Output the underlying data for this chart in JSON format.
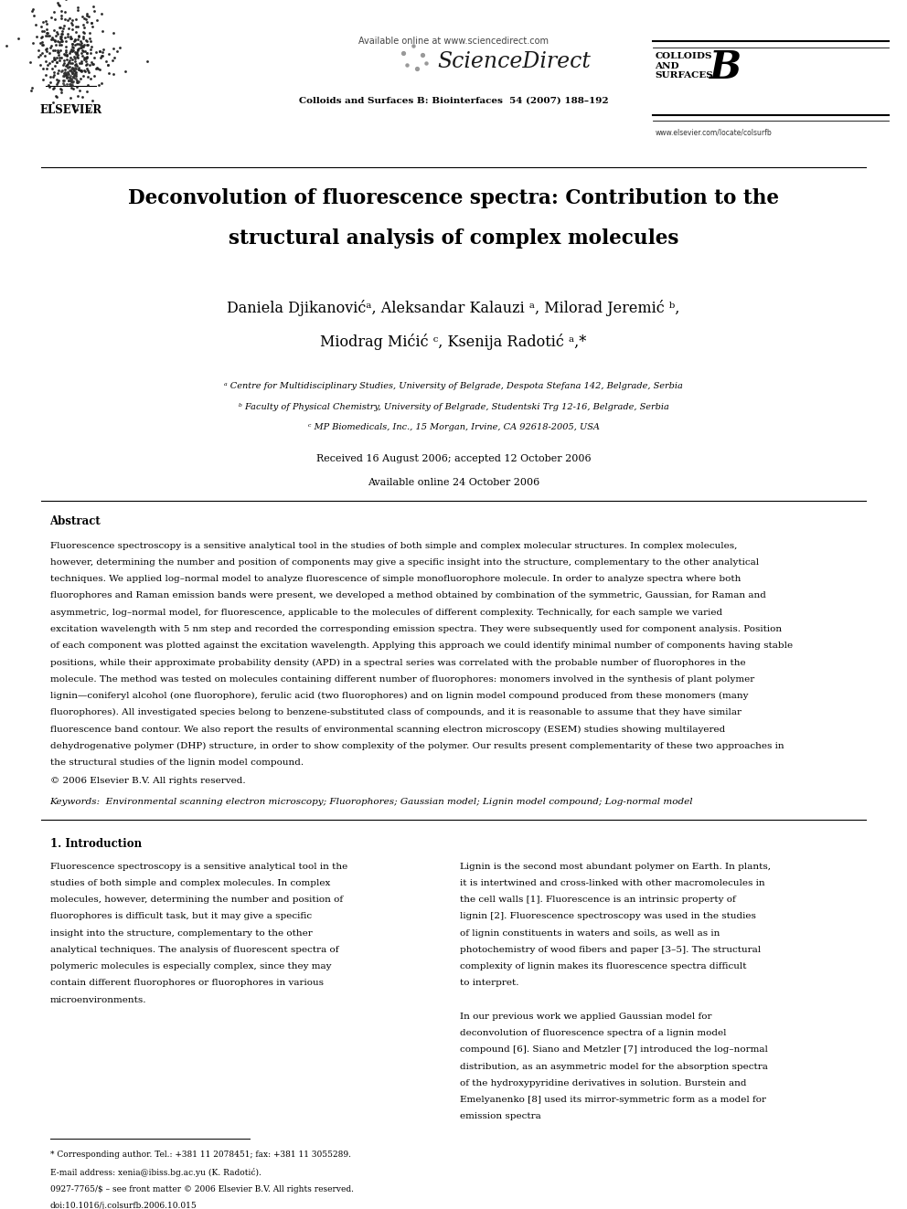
{
  "bg_color": "#ffffff",
  "page_width": 9.92,
  "page_height": 13.23,
  "dpi": 100,
  "header_url": "Available online at www.sciencedirect.com",
  "sd_text": "ScienceDirect",
  "journal_name": "Colloids and Surfaces B: Biointerfaces  54 (2007) 188–192",
  "journal_url": "www.elsevier.com/locate/colsurfb",
  "journal_logo_text": "COLLOIDS\nAND\nSURFACES",
  "journal_logo_letter": "B",
  "elsevier_text": "ELSEVIER",
  "title_line1": "Deconvolution of fluorescence spectra: Contribution to the",
  "title_line2": "structural analysis of complex molecules",
  "author_line1": "Daniela Djikanovićᵃ, Aleksandar Kalauzi ᵃ, Milorad Jeremić ᵇ,",
  "author_line2": "Miodrag Mićić ᶜ, Ksenija Radotić ᵃ,*",
  "affil_a": "ᵃ Centre for Multidisciplinary Studies, University of Belgrade, Despota Stefana 142, Belgrade, Serbia",
  "affil_b": "ᵇ Faculty of Physical Chemistry, University of Belgrade, Studentski Trg 12-16, Belgrade, Serbia",
  "affil_c": "ᶜ MP Biomedicals, Inc., 15 Morgan, Irvine, CA 92618-2005, USA",
  "received": "Received 16 August 2006; accepted 12 October 2006",
  "available": "Available online 24 October 2006",
  "abstract_title": "Abstract",
  "abstract_indent": "    Fluorescence spectroscopy is a sensitive analytical tool in the studies of both simple and complex molecular structures. In complex molecules, however, determining the number and position of components may give a specific insight into the structure, complementary to the other analytical techniques. We applied log–normal model to analyze fluorescence of simple monofluorophore molecule. In order to analyze spectra where both fluorophores and Raman emission bands were present, we developed a method obtained by combination of the symmetric, Gaussian, for Raman and asymmetric, log–normal model, for fluorescence, applicable to the molecules of different complexity. Technically, for each sample we varied excitation wavelength with 5 nm step and recorded the corresponding emission spectra. They were subsequently used for component analysis. Position of each component was plotted against the excitation wavelength. Applying this approach we could identify minimal number of components having stable positions, while their approximate probability density (APD) in a spectral series was correlated with the probable number of fluorophores in the molecule. The method was tested on molecules containing different number of fluorophores: monomers involved in the synthesis of plant polymer lignin—coniferyl alcohol (one fluorophore), ferulic acid (two fluorophores) and on lignin model compound produced from these monomers (many fluorophores). All investigated species belong to benzene-substituted class of compounds, and it is reasonable to assume that they have similar fluorescence band contour. We also report the results of environmental scanning electron microscopy (ESEM) studies showing multilayered dehydrogenative polymer (DHP) structure, in order to show complexity of the polymer. Our results present complementarity of these two approaches in the structural studies of the lignin model compound.",
  "copyright": "© 2006 Elsevier B.V. All rights reserved.",
  "keywords_label": "Keywords:",
  "keywords_text": "  Environmental scanning electron microscopy; Fluorophores; Gaussian model; Lignin model compound; Log-normal model",
  "section1_title": "1. Introduction",
  "section1_left_indent": "   Fluorescence spectroscopy is a sensitive analytical tool in the studies of both simple and complex molecules. In complex molecules, however, determining the number and position of fluorophores is difficult task, but it may give a specific insight into the structure, complementary to the other analytical techniques. The analysis of fluorescent spectra of polymeric molecules is especially complex, since they may contain different fluorophores or fluorophores in various microenvironments.",
  "section1_right": "Lignin is the second most abundant polymer on Earth. In plants, it is intertwined and cross-linked with other macromolecules in the cell walls [1]. Fluorescence is an intrinsic property of lignin [2]. Fluorescence spectroscopy was used in the studies of lignin constituents in waters and soils, as well as in photochemistry of wood fibers and paper [3–5]. The structural complexity of lignin makes its fluorescence spectra difficult to interpret.",
  "section1_right2": "   In our previous work we applied Gaussian model for deconvolution of fluorescence spectra of a lignin model compound [6]. Siano and Metzler [7] introduced the log–normal distribution, as an asymmetric model for the absorption spectra of the hydroxypyridine derivatives in solution. Burstein and Emelyanenko [8] used its mirror-symmetric form as a model for emission spectra",
  "footnote_star": "* Corresponding author. Tel.: +381 11 2078451; fax: +381 11 3055289.",
  "footnote_email": "E-mail address: xenia@ibiss.bg.ac.yu (K. Radotić).",
  "footnote_issn": "0927-7765/$ – see front matter © 2006 Elsevier B.V. All rights reserved.",
  "footnote_doi": "doi:10.1016/j.colsurfb.2006.10.015",
  "lm": 0.055,
  "rm": 0.945,
  "text_color": "#000000"
}
